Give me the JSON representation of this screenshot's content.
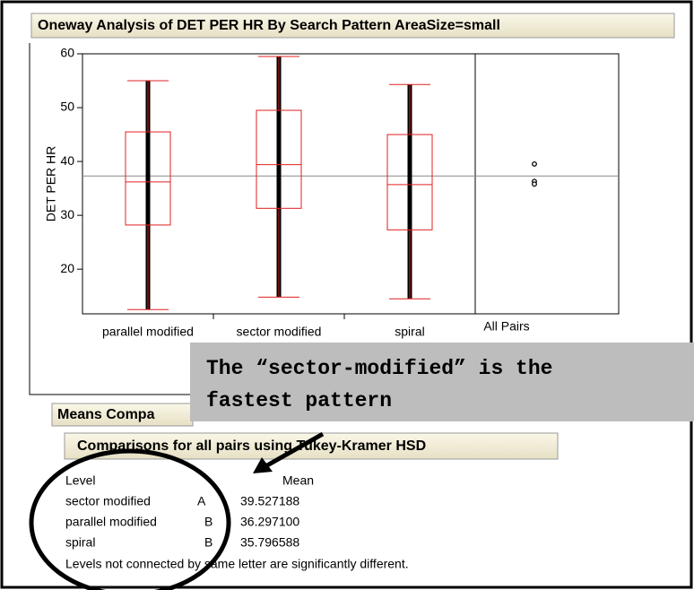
{
  "chart_data": {
    "type": "box",
    "title": "Oneway Analysis of DET PER HR By Search Pattern AreaSize=small",
    "ylabel": "DET PER HR",
    "categories": [
      "parallel modified",
      "sector modified",
      "spiral"
    ],
    "high": [
      55,
      59.5,
      54.3
    ],
    "q3": [
      45.5,
      49.5,
      45
    ],
    "median": [
      36.2,
      39.4,
      35.7
    ],
    "q1": [
      28.2,
      31.3,
      27.3
    ],
    "low": [
      12.5,
      14.8,
      14.5
    ],
    "color": "#e02020",
    "grand_mean": 37.3,
    "all_pairs_label": "All Pairs",
    "ylim": [
      11.7,
      60
    ],
    "yticks": [
      20,
      30,
      40,
      50,
      60
    ]
  },
  "callout": [
    "The “sector-modified” is the",
    "fastest pattern"
  ],
  "means": {
    "header": "Means Compa",
    "subheader": "Comparisons for all pairs using Tukey-Kramer HSD",
    "columns": [
      "Level",
      "Mean"
    ],
    "rows": [
      [
        "sector modified",
        "A",
        "39.527188"
      ],
      [
        "parallel modified",
        "B",
        "36.297100"
      ],
      [
        "spiral",
        "B",
        "35.796588"
      ]
    ],
    "note": "Levels not connected by same letter are significantly different."
  }
}
